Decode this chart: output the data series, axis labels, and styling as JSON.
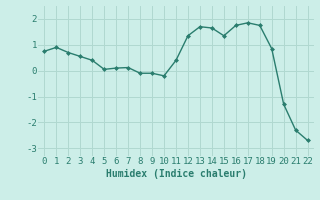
{
  "x": [
    0,
    1,
    2,
    3,
    4,
    5,
    6,
    7,
    8,
    9,
    10,
    11,
    12,
    13,
    14,
    15,
    16,
    17,
    18,
    19,
    20,
    21,
    22
  ],
  "y": [
    0.75,
    0.9,
    0.7,
    0.55,
    0.4,
    0.05,
    0.1,
    0.12,
    -0.1,
    -0.1,
    -0.2,
    0.4,
    1.35,
    1.7,
    1.65,
    1.35,
    1.75,
    1.85,
    1.75,
    0.85,
    -1.3,
    -2.3,
    -2.7
  ],
  "line_color": "#2a7d6e",
  "marker": "D",
  "marker_size": 2,
  "background_color": "#cceee8",
  "grid_color": "#b0d8d0",
  "xlabel": "Humidex (Indice chaleur)",
  "xlim": [
    -0.5,
    22.5
  ],
  "ylim": [
    -3.3,
    2.5
  ],
  "yticks": [
    -3,
    -2,
    -1,
    0,
    1,
    2
  ],
  "xticks": [
    0,
    1,
    2,
    3,
    4,
    5,
    6,
    7,
    8,
    9,
    10,
    11,
    12,
    13,
    14,
    15,
    16,
    17,
    18,
    19,
    20,
    21,
    22
  ],
  "xlabel_fontsize": 7,
  "tick_fontsize": 6.5,
  "line_width": 1.0
}
